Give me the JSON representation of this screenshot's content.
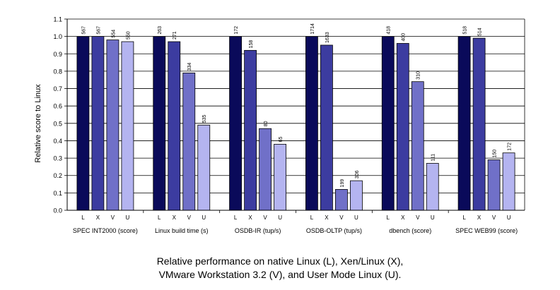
{
  "chart_data": {
    "type": "bar",
    "ylabel": "Relative score to Linux",
    "ylim": [
      0,
      1.1
    ],
    "yticks": [
      "0.0",
      "0.1",
      "0.2",
      "0.3",
      "0.4",
      "0.5",
      "0.6",
      "0.7",
      "0.8",
      "0.9",
      "1.0",
      "1.1"
    ],
    "grid": true,
    "bar_labels": [
      "L",
      "X",
      "V",
      "U"
    ],
    "colors": [
      "#0a0a5a",
      "#3c3ca0",
      "#7070c8",
      "#b4b4f0"
    ],
    "groups": [
      {
        "name": "SPEC INT2000 (score)",
        "values": [
          1.0,
          1.0,
          0.98,
          0.97
        ],
        "labels": [
          "567",
          "567",
          "554",
          "550"
        ]
      },
      {
        "name": "Linux build time (s)",
        "values": [
          1.0,
          0.97,
          0.79,
          0.49
        ],
        "labels": [
          "263",
          "271",
          "334",
          "535"
        ]
      },
      {
        "name": "OSDB-IR (tup/s)",
        "values": [
          1.0,
          0.92,
          0.47,
          0.38
        ],
        "labels": [
          "172",
          "158",
          "80",
          "65"
        ]
      },
      {
        "name": "OSDB-OLTP (tup/s)",
        "values": [
          1.0,
          0.95,
          0.12,
          0.17
        ],
        "labels": [
          "1714",
          "1633",
          "199",
          "306"
        ]
      },
      {
        "name": "dbench (score)",
        "values": [
          1.0,
          0.96,
          0.74,
          0.27
        ],
        "labels": [
          "418",
          "400",
          "310",
          "111"
        ]
      },
      {
        "name": "SPEC WEB99 (score)",
        "values": [
          1.0,
          0.99,
          0.29,
          0.33
        ],
        "labels": [
          "518",
          "514",
          "150",
          "172"
        ]
      }
    ]
  },
  "caption": {
    "line1": "Relative performance on native Linux (L), Xen/Linux (X),",
    "line2": "VMware Workstation 3.2 (V), and User Mode Linux (U)."
  }
}
